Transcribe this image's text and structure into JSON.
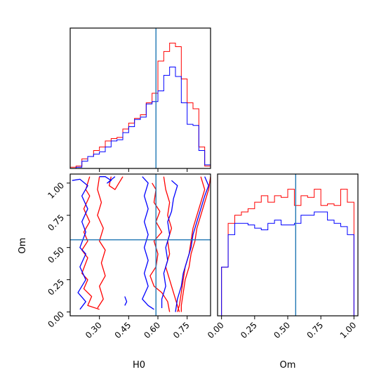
{
  "chart_data": {
    "type": "corner",
    "parameters": [
      "H0",
      "Om"
    ],
    "colors": {
      "series_1": "#ff0000",
      "series_2": "#0000ff",
      "truth": "#1f77b4"
    },
    "truth": {
      "H0": 0.59,
      "Om": 0.56
    },
    "panels": [
      {
        "id": "hist-H0",
        "type": "step-histogram",
        "x_range": [
          0.15,
          0.87
        ],
        "bin_edges": [
          0.15,
          0.18,
          0.21,
          0.24,
          0.27,
          0.3,
          0.33,
          0.36,
          0.39,
          0.42,
          0.45,
          0.48,
          0.51,
          0.54,
          0.57,
          0.6,
          0.63,
          0.66,
          0.69,
          0.72,
          0.75,
          0.78,
          0.81,
          0.84,
          0.87
        ],
        "series": [
          {
            "color": "#ff0000",
            "values": [
              1,
              2,
              8,
              10,
              15,
              18,
              23,
              25,
              26,
              33,
              38,
              42,
              45,
              55,
              63,
              90,
              98,
              105,
              102,
              75,
              55,
              50,
              18,
              2
            ]
          },
          {
            "color": "#0000ff",
            "values": [
              0,
              1,
              6,
              10,
              12,
              14,
              18,
              23,
              24,
              30,
              35,
              41,
              43,
              54,
              56,
              65,
              78,
              85,
              77,
              55,
              37,
              36,
              15,
              3
            ]
          }
        ]
      },
      {
        "id": "hist-Om",
        "type": "step-histogram",
        "x_range": [
          -0.03,
          1.03
        ],
        "x_ticks": [
          "0.00",
          "0.25",
          "0.50",
          "0.75",
          "1.00"
        ],
        "x_tick_values": [
          0,
          0.25,
          0.5,
          0.75,
          1.0
        ],
        "xlabel": "Om",
        "bin_edges": [
          0.0,
          0.05,
          0.1,
          0.15,
          0.2,
          0.25,
          0.3,
          0.35,
          0.4,
          0.45,
          0.5,
          0.55,
          0.6,
          0.65,
          0.7,
          0.75,
          0.8,
          0.85,
          0.9,
          0.95,
          1.0
        ],
        "series": [
          {
            "color": "#ff0000",
            "values": [
              30,
              57,
              62,
              64,
              66,
              70,
              74,
              70,
              74,
              73,
              78,
              68,
              74,
              73,
              78,
              68,
              69,
              68,
              78,
              70
            ]
          },
          {
            "color": "#0000ff",
            "values": [
              30,
              50,
              57,
              57,
              56,
              54,
              53,
              57,
              59,
              56,
              56,
              57,
              62,
              62,
              64,
              64,
              59,
              57,
              55,
              50
            ]
          }
        ]
      },
      {
        "id": "contour-H0-Om",
        "type": "contour",
        "x_range": [
          0.15,
          0.87
        ],
        "y_range": [
          -0.03,
          1.07
        ],
        "x_ticks": [
          "0.30",
          "0.45",
          "0.60",
          "0.75"
        ],
        "x_tick_values": [
          0.3,
          0.45,
          0.6,
          0.75
        ],
        "y_ticks": [
          "0.00",
          "0.25",
          "0.50",
          "0.75",
          "1.00"
        ],
        "y_tick_values": [
          0,
          0.25,
          0.5,
          0.75,
          1.0
        ],
        "xlabel": "H0",
        "ylabel": "Om",
        "contours": [
          {
            "color": "#ff0000",
            "points": [
              [
                0.25,
                1.05
              ],
              [
                0.23,
                0.95
              ],
              [
                0.25,
                0.9
              ],
              [
                0.22,
                0.8
              ],
              [
                0.25,
                0.7
              ],
              [
                0.22,
                0.62
              ],
              [
                0.24,
                0.55
              ],
              [
                0.21,
                0.48
              ],
              [
                0.24,
                0.42
              ],
              [
                0.21,
                0.3
              ],
              [
                0.24,
                0.25
              ],
              [
                0.22,
                0.18
              ],
              [
                0.26,
                0.12
              ],
              [
                0.24,
                0.05
              ],
              [
                0.3,
                0.02
              ]
            ]
          },
          {
            "color": "#ff0000",
            "points": [
              [
                0.3,
                1.05
              ],
              [
                0.29,
                0.95
              ],
              [
                0.31,
                0.85
              ],
              [
                0.29,
                0.75
              ],
              [
                0.32,
                0.65
              ],
              [
                0.3,
                0.55
              ],
              [
                0.33,
                0.48
              ],
              [
                0.31,
                0.38
              ],
              [
                0.33,
                0.28
              ],
              [
                0.3,
                0.2
              ],
              [
                0.32,
                0.1
              ],
              [
                0.29,
                0.03
              ]
            ]
          },
          {
            "color": "#ff0000",
            "points": [
              [
                0.36,
                1.05
              ],
              [
                0.35,
                0.98
              ],
              [
                0.38,
                0.95
              ],
              [
                0.4,
                1.0
              ],
              [
                0.42,
                1.05
              ]
            ]
          },
          {
            "color": "#ff0000",
            "points": [
              [
                0.57,
                1.0
              ],
              [
                0.59,
                0.95
              ],
              [
                0.58,
                0.85
              ],
              [
                0.61,
                0.78
              ],
              [
                0.59,
                0.7
              ],
              [
                0.62,
                0.62
              ],
              [
                0.58,
                0.55
              ],
              [
                0.6,
                0.45
              ],
              [
                0.59,
                0.35
              ],
              [
                0.56,
                0.28
              ],
              [
                0.58,
                0.2
              ],
              [
                0.62,
                0.15
              ],
              [
                0.65,
                0.08
              ],
              [
                0.66,
                0.0
              ]
            ]
          },
          {
            "color": "#ff0000",
            "points": [
              [
                0.63,
                1.05
              ],
              [
                0.64,
                0.95
              ],
              [
                0.66,
                0.85
              ],
              [
                0.65,
                0.75
              ],
              [
                0.67,
                0.65
              ],
              [
                0.65,
                0.55
              ],
              [
                0.66,
                0.45
              ],
              [
                0.64,
                0.35
              ],
              [
                0.66,
                0.25
              ],
              [
                0.68,
                0.15
              ],
              [
                0.7,
                0.05
              ],
              [
                0.71,
                0.0
              ]
            ]
          },
          {
            "color": "#ff0000",
            "points": [
              [
                0.82,
                1.05
              ],
              [
                0.84,
                0.95
              ],
              [
                0.82,
                0.85
              ],
              [
                0.8,
                0.75
              ],
              [
                0.78,
                0.65
              ],
              [
                0.77,
                0.55
              ],
              [
                0.76,
                0.45
              ],
              [
                0.74,
                0.35
              ],
              [
                0.73,
                0.25
              ],
              [
                0.72,
                0.15
              ],
              [
                0.71,
                0.05
              ],
              [
                0.7,
                0.0
              ]
            ]
          },
          {
            "color": "#ff0000",
            "points": [
              [
                0.87,
                1.05
              ],
              [
                0.86,
                0.95
              ],
              [
                0.84,
                0.85
              ],
              [
                0.82,
                0.75
              ],
              [
                0.8,
                0.65
              ],
              [
                0.79,
                0.55
              ],
              [
                0.77,
                0.45
              ],
              [
                0.76,
                0.35
              ],
              [
                0.74,
                0.25
              ],
              [
                0.73,
                0.15
              ],
              [
                0.72,
                0.05
              ],
              [
                0.72,
                0.0
              ]
            ]
          },
          {
            "color": "#0000ff",
            "points": [
              [
                0.16,
                1.02
              ],
              [
                0.2,
                1.03
              ],
              [
                0.24,
                0.98
              ],
              [
                0.21,
                0.9
              ],
              [
                0.24,
                0.8
              ],
              [
                0.21,
                0.7
              ],
              [
                0.23,
                0.62
              ],
              [
                0.2,
                0.5
              ],
              [
                0.23,
                0.45
              ],
              [
                0.2,
                0.35
              ],
              [
                0.23,
                0.25
              ],
              [
                0.19,
                0.15
              ],
              [
                0.23,
                0.08
              ],
              [
                0.2,
                0.02
              ]
            ]
          },
          {
            "color": "#0000ff",
            "points": [
              [
                0.3,
                1.05
              ],
              [
                0.33,
                1.05
              ],
              [
                0.36,
                1.02
              ],
              [
                0.34,
                1.0
              ],
              [
                0.38,
                1.05
              ]
            ]
          },
          {
            "color": "#0000ff",
            "points": [
              [
                0.52,
                1.05
              ],
              [
                0.55,
                1.0
              ],
              [
                0.53,
                0.9
              ],
              [
                0.55,
                0.8
              ],
              [
                0.53,
                0.7
              ],
              [
                0.55,
                0.6
              ],
              [
                0.53,
                0.5
              ],
              [
                0.55,
                0.4
              ],
              [
                0.53,
                0.3
              ],
              [
                0.55,
                0.2
              ],
              [
                0.52,
                0.1
              ],
              [
                0.55,
                0.05
              ],
              [
                0.58,
                0.02
              ]
            ]
          },
          {
            "color": "#0000ff",
            "points": [
              [
                0.67,
                1.02
              ],
              [
                0.7,
                0.98
              ],
              [
                0.68,
                0.88
              ],
              [
                0.67,
                0.78
              ],
              [
                0.65,
                0.7
              ],
              [
                0.66,
                0.6
              ],
              [
                0.64,
                0.5
              ],
              [
                0.65,
                0.4
              ],
              [
                0.63,
                0.3
              ],
              [
                0.64,
                0.2
              ],
              [
                0.62,
                0.1
              ],
              [
                0.62,
                0.03
              ]
            ]
          },
          {
            "color": "#0000ff",
            "points": [
              [
                0.84,
                1.05
              ],
              [
                0.86,
                0.98
              ],
              [
                0.84,
                0.9
              ],
              [
                0.82,
                0.8
              ],
              [
                0.8,
                0.7
              ],
              [
                0.78,
                0.6
              ],
              [
                0.77,
                0.5
              ],
              [
                0.75,
                0.4
              ],
              [
                0.73,
                0.3
              ],
              [
                0.72,
                0.2
              ],
              [
                0.7,
                0.1
              ],
              [
                0.69,
                0.0
              ]
            ]
          },
          {
            "color": "#0000ff",
            "points": [
              [
                0.43,
                0.12
              ],
              [
                0.44,
                0.08
              ],
              [
                0.43,
                0.05
              ]
            ]
          }
        ]
      }
    ]
  }
}
